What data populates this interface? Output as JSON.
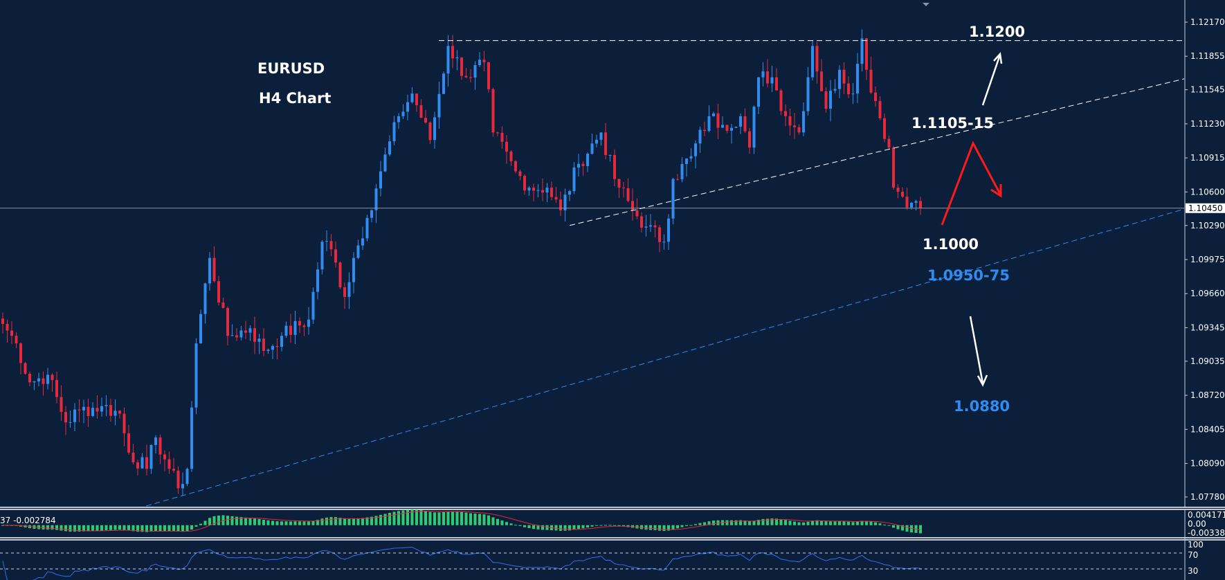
{
  "chart_data": {
    "type": "candlestick",
    "title": "EURUSD",
    "subtitle": "H4 Chart",
    "ylim": [
      1.0765,
      1.1232
    ],
    "y_ticks": [
      "1.12170",
      "1.11855",
      "1.11545",
      "1.11230",
      "1.10915",
      "1.10600",
      "1.10290",
      "1.09975",
      "1.09660",
      "1.09345",
      "1.09035",
      "1.08720",
      "1.08405",
      "1.08090",
      "1.07780"
    ],
    "current_price": "1.10450",
    "grid": false,
    "price_path": {
      "bars": [
        0,
        3,
        6,
        10,
        14,
        17,
        22,
        26,
        28,
        32,
        34,
        37,
        39,
        41,
        43,
        46,
        50,
        55,
        58,
        62,
        68,
        71,
        73,
        76,
        78,
        81,
        84,
        88,
        91,
        95,
        99,
        103,
        107,
        109,
        114,
        117,
        121,
        124,
        128,
        133,
        136,
        140,
        143,
        147,
        149,
        153,
        157,
        160,
        164,
        166,
        168,
        171,
        174,
        177,
        180,
        183,
        186,
        189,
        191,
        192,
        194,
        197,
        198,
        202,
        204
      ],
      "prices": [
        1.0938,
        1.092,
        1.0884,
        1.0891,
        1.0847,
        1.0858,
        1.0862,
        1.0855,
        1.0819,
        1.0804,
        1.0833,
        1.0804,
        1.0786,
        1.0804,
        1.092,
        1.0999,
        1.0927,
        1.0934,
        1.0913,
        1.0927,
        1.0942,
        1.1014,
        1.1007,
        1.0963,
        1.0999,
        1.1036,
        1.1079,
        1.113,
        1.1151,
        1.1108,
        1.1195,
        1.1166,
        1.118,
        1.1115,
        1.1079,
        1.1064,
        1.1064,
        1.1043,
        1.1086,
        1.1115,
        1.1072,
        1.1043,
        1.1028,
        1.1014,
        1.1072,
        1.1093,
        1.113,
        1.1122,
        1.113,
        1.1101,
        1.1166,
        1.1166,
        1.113,
        1.1115,
        1.1195,
        1.1137,
        1.1173,
        1.1151,
        1.1202,
        1.1173,
        1.1144,
        1.1101,
        1.1064,
        1.105,
        1.1045
      ]
    },
    "annotations": {
      "resistance": "1.1200",
      "trendline_resistance": "1.1105-15",
      "support_near": "1.1000",
      "trendline_support": "1.0950-75",
      "target_down": "1.0880"
    },
    "lines": {
      "resistance_price": 1.12,
      "dashed_white_trend": [
        [
          126,
          1.1029
        ],
        [
          260,
          1.1162
        ]
      ],
      "dashed_blue_trend": [
        [
          28,
          1.0765
        ],
        [
          260,
          1.1041
        ]
      ]
    },
    "macd": {
      "label": "37 -0.002784",
      "ticks": [
        "0.004171",
        "0.00",
        "-0.003383"
      ]
    },
    "rsi": {
      "ticks": [
        "100",
        "70",
        "30"
      ],
      "levels": [
        70,
        30
      ]
    },
    "colors": {
      "background": "#0b1f3a",
      "bull": "#2f8cf0",
      "bear": "#e8283c",
      "annotation_white": "#ffffff",
      "annotation_blue": "#2f8cf0",
      "macd_hist": "#2ecc71",
      "macd_signal": "#e8283c",
      "rsi_line": "#2f6ff0"
    }
  }
}
